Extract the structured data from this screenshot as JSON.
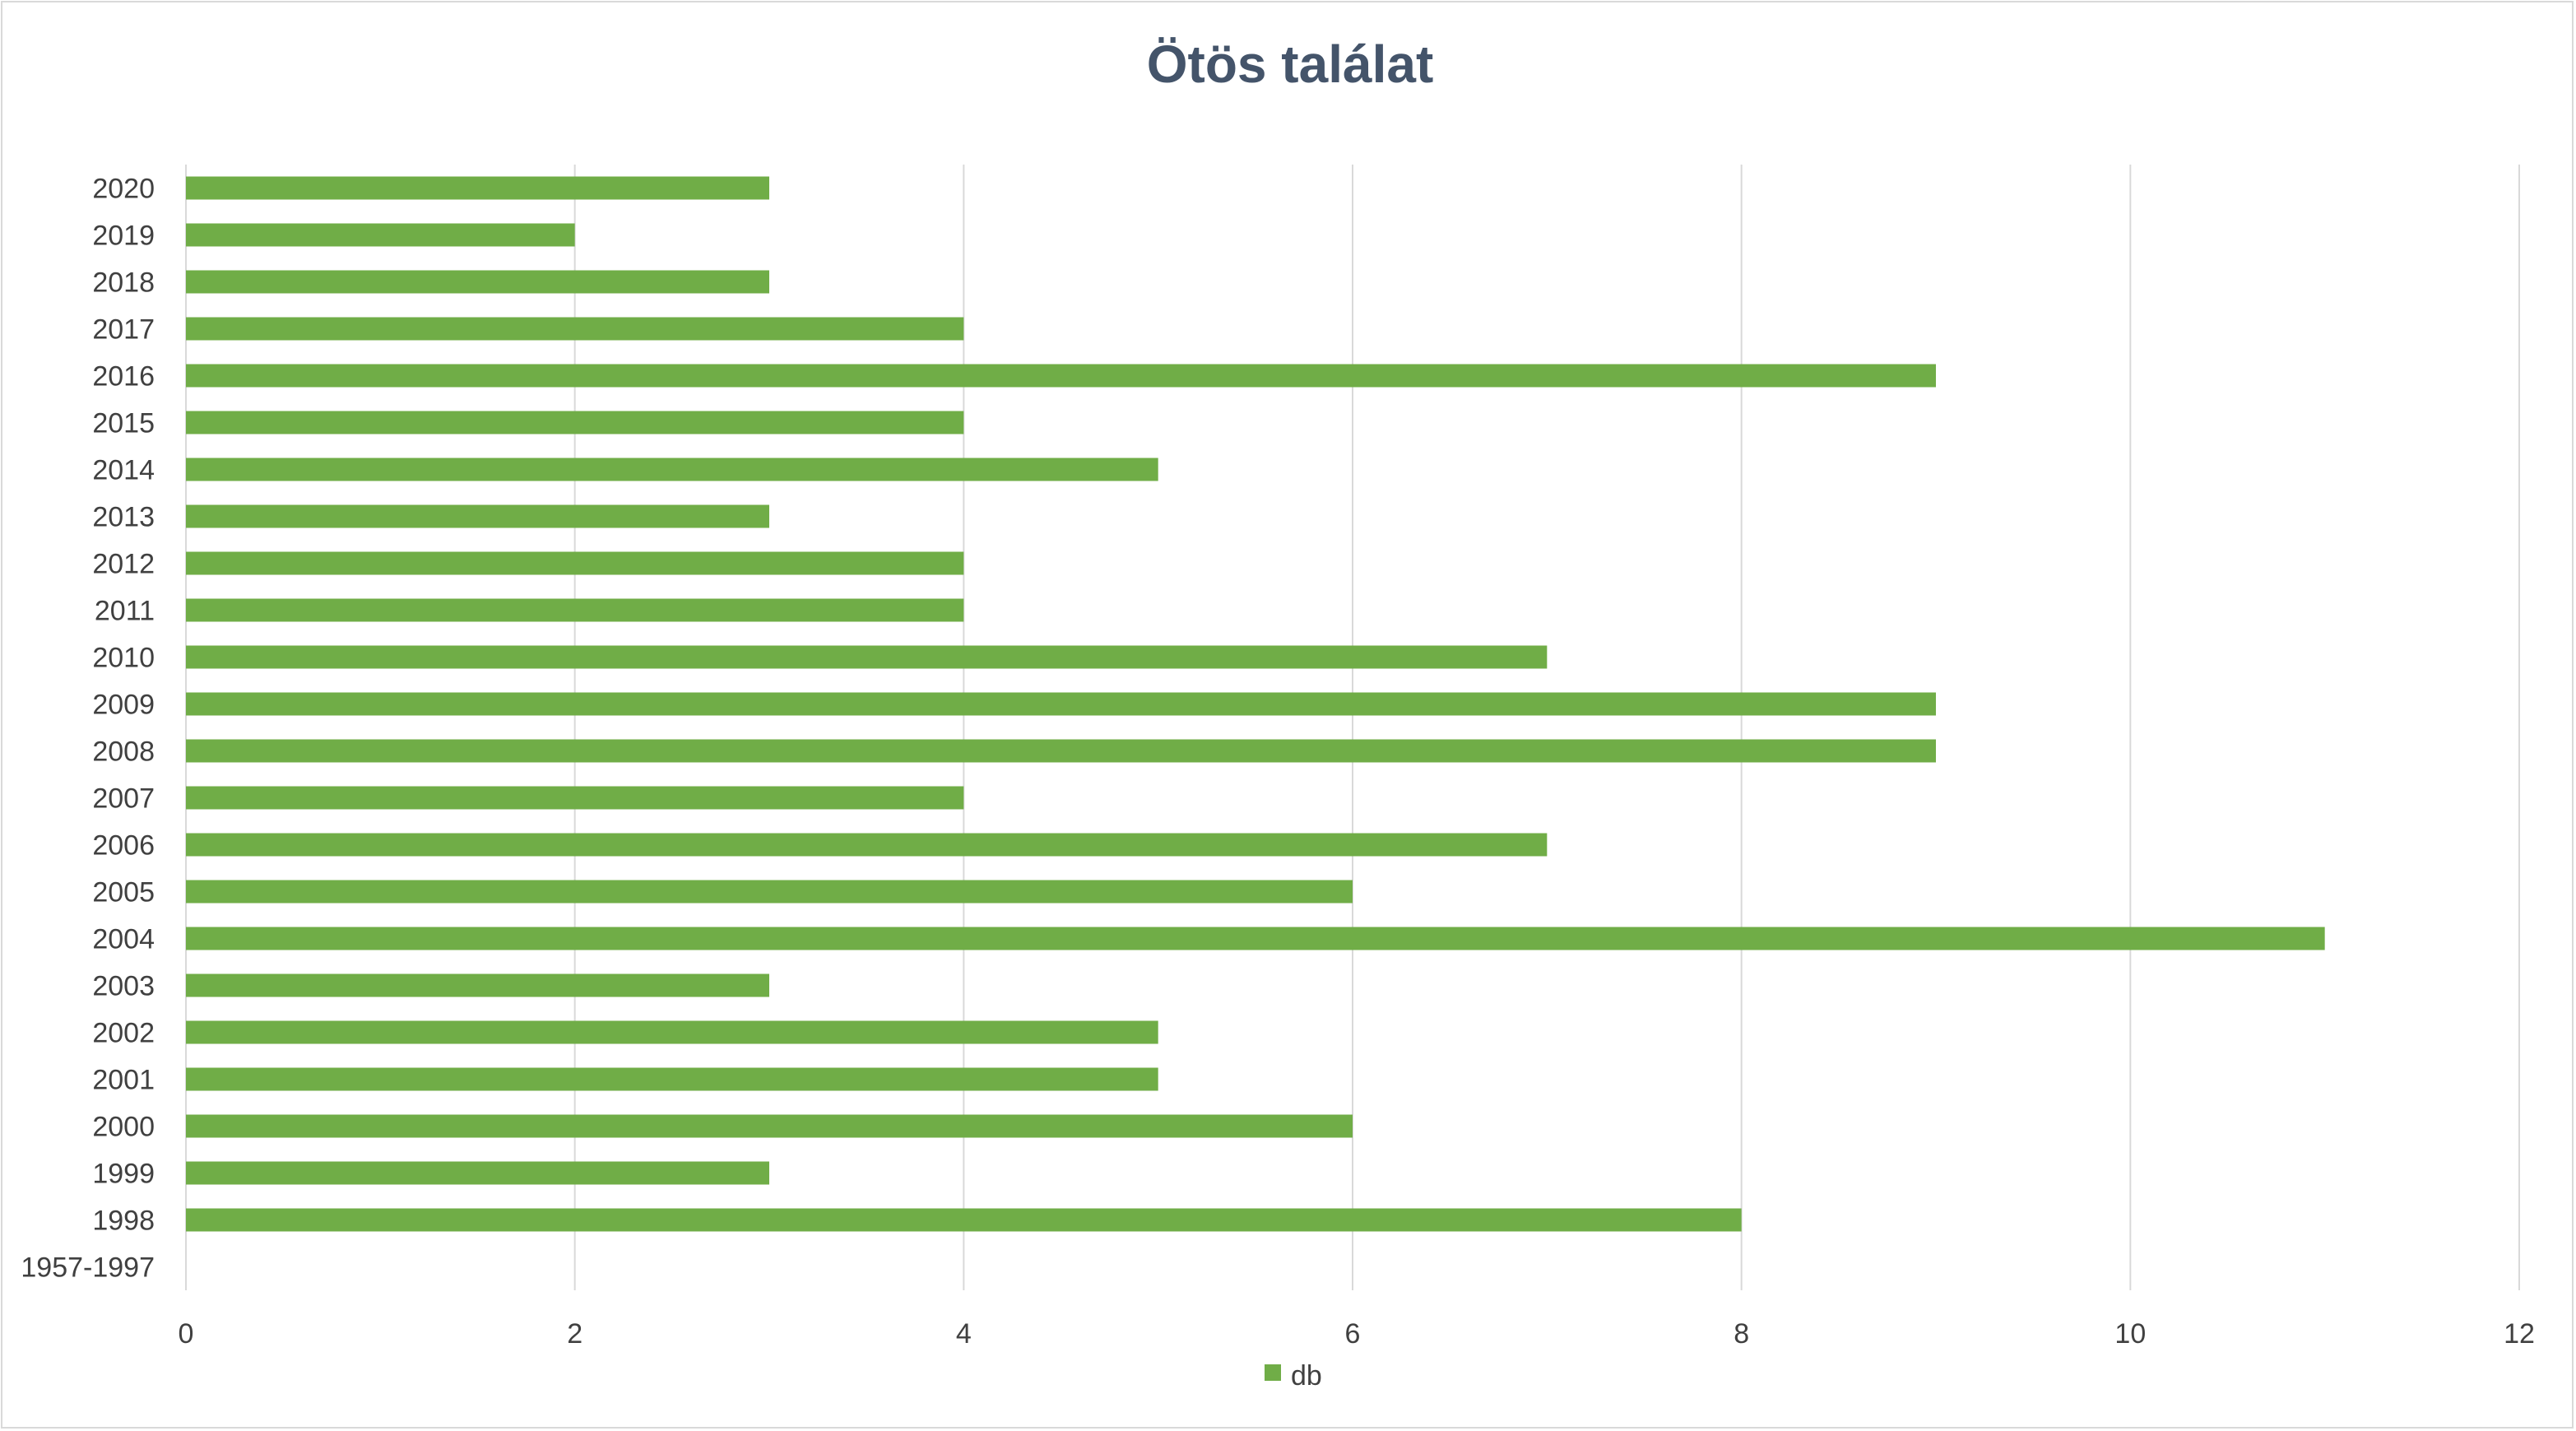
{
  "chart_data": {
    "type": "bar",
    "orientation": "horizontal",
    "title": "Ötös találat",
    "categories": [
      "1957-1997",
      "1998",
      "1999",
      "2000",
      "2001",
      "2002",
      "2003",
      "2004",
      "2005",
      "2006",
      "2007",
      "2008",
      "2009",
      "2010",
      "2011",
      "2012",
      "2013",
      "2014",
      "2015",
      "2016",
      "2017",
      "2018",
      "2019",
      "2020"
    ],
    "series": [
      {
        "name": "db",
        "values": [
          0,
          8,
          3,
          6,
          5,
          5,
          3,
          11,
          6,
          7,
          4,
          9,
          9,
          7,
          4,
          4,
          3,
          5,
          4,
          9,
          4,
          3,
          2,
          3
        ]
      }
    ],
    "xlim": [
      0,
      12
    ],
    "x_ticks": [
      "0",
      "2",
      "4",
      "6",
      "8",
      "10",
      "12"
    ],
    "grid": true,
    "legend_position": "bottom",
    "colors": {
      "bar": "#70ad47",
      "grid": "#d9d9d9",
      "title": "#44546a",
      "text": "#404040"
    }
  }
}
